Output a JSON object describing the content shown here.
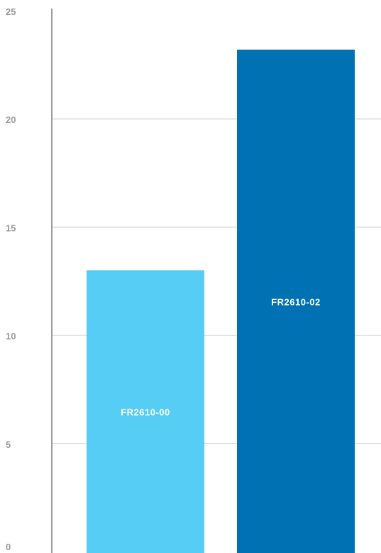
{
  "chart_data": {
    "type": "bar",
    "title": "",
    "xlabel": "",
    "ylabel": "",
    "categories": [
      "FR2610-00",
      "FR2610-02"
    ],
    "values": [
      13,
      23.2
    ],
    "bar_colors": [
      "#56cdf5",
      "#0071b2"
    ],
    "ylim": [
      0,
      25
    ],
    "yticks": [
      0,
      5,
      10,
      15,
      20,
      25
    ],
    "ytick_labels": [
      "0",
      "5",
      "10",
      "15",
      "20",
      "25"
    ],
    "grid": true,
    "grid_color": "#c8c8c8",
    "axis_color": "#9a9a9a",
    "tick_label_color": "#9a9a9a",
    "bar_label_color": "#ffffff",
    "legend": "none"
  }
}
